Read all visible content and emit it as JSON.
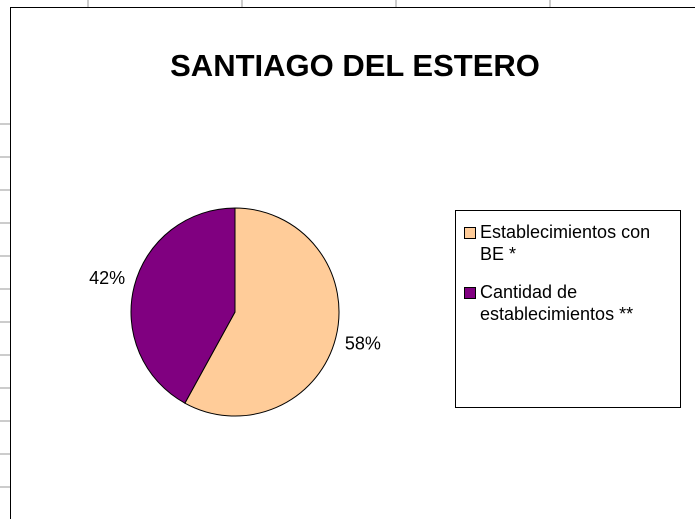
{
  "chart_data": {
    "type": "pie",
    "title": "SANTIAGO DEL ESTERO",
    "categories": [
      "Establecimientos con BE *",
      "Cantidad de establecimientos **"
    ],
    "values": [
      58,
      42
    ],
    "value_labels": [
      "58%",
      "42%"
    ],
    "colors": [
      "#ffcc99",
      "#800080"
    ],
    "legend": "right"
  }
}
